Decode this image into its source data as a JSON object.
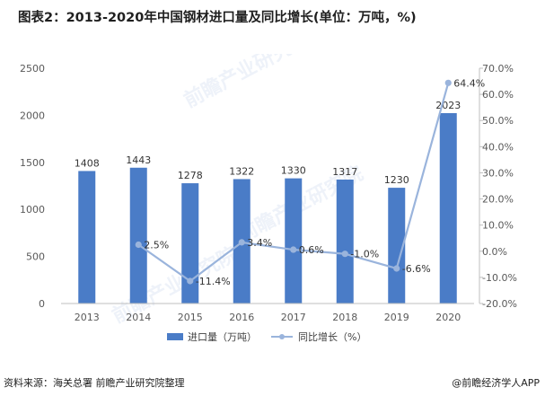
{
  "title": "图表2：2013-2020年中国钢材进口量及同比增长(单位：万吨，%)",
  "source": "资料来源：海关总署 前瞻产业研究院整理",
  "credit": "@前瞻经济学人APP",
  "watermark": "前瞻产业研究院",
  "colors": {
    "bar": "#4a7cc7",
    "line": "#9ab4dc",
    "axis": "#bfbfbf",
    "text": "#595959"
  },
  "chart_data": {
    "type": "bar",
    "categories": [
      "2013",
      "2014",
      "2015",
      "2016",
      "2017",
      "2018",
      "2019",
      "2020"
    ],
    "series": [
      {
        "name": "进口量（万吨）",
        "type": "bar",
        "axis": "left",
        "values": [
          1408,
          1443,
          1278,
          1322,
          1330,
          1317,
          1230,
          2023
        ],
        "labels": [
          "1408",
          "1443",
          "1278",
          "1322",
          "1330",
          "1317",
          "1230",
          "2023"
        ]
      },
      {
        "name": "同比增长（%）",
        "type": "line",
        "axis": "right",
        "values": [
          null,
          2.5,
          -11.4,
          3.4,
          0.6,
          -1.0,
          -6.6,
          64.4
        ],
        "labels": [
          "",
          "2.5%",
          "-11.4%",
          "3.4%",
          "0.6%",
          "-1.0%",
          "-6.6%",
          "64.4%"
        ]
      }
    ],
    "y_left": {
      "ylim": [
        0,
        2500
      ],
      "ticks": [
        "0",
        "500",
        "1000",
        "1500",
        "2000",
        "2500"
      ]
    },
    "y_right": {
      "ylim": [
        -20,
        70
      ],
      "ticks": [
        "-20.0%",
        "-10.0%",
        "0.0%",
        "10.0%",
        "20.0%",
        "30.0%",
        "40.0%",
        "50.0%",
        "60.0%",
        "70.0%"
      ]
    },
    "grid": false,
    "legend_position": "bottom"
  }
}
